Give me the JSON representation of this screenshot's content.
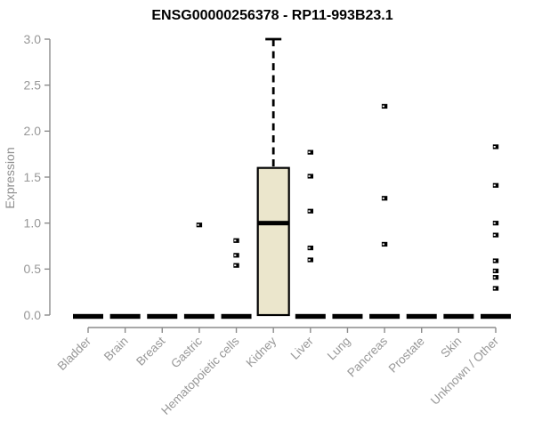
{
  "chart_data": {
    "type": "boxplot",
    "title": "ENSG00000256378 - RP11-993B23.1",
    "xlabel": "",
    "ylabel": "Expression",
    "ylim": [
      0,
      3
    ],
    "yticks": [
      0.0,
      0.5,
      1.0,
      1.5,
      2.0,
      2.5,
      3.0
    ],
    "ytick_labels": [
      "0.0",
      "0.5",
      "1.0",
      "1.5",
      "2.0",
      "2.5",
      "3.0"
    ],
    "grid": false,
    "legend": false,
    "categories": [
      "Bladder",
      "Brain",
      "Breast",
      "Gastric",
      "Hematopoietic cells",
      "Kidney",
      "Liver",
      "Lung",
      "Pancreas",
      "Prostate",
      "Skin",
      "Unknown / Other"
    ],
    "boxes": [
      {
        "category": "Bladder",
        "q1": 0,
        "median": 0,
        "q3": 0,
        "whisker_low": 0,
        "whisker_high": 0,
        "outliers": []
      },
      {
        "category": "Brain",
        "q1": 0,
        "median": 0,
        "q3": 0,
        "whisker_low": 0,
        "whisker_high": 0,
        "outliers": []
      },
      {
        "category": "Breast",
        "q1": 0,
        "median": 0,
        "q3": 0,
        "whisker_low": 0,
        "whisker_high": 0,
        "outliers": []
      },
      {
        "category": "Gastric",
        "q1": 0,
        "median": 0,
        "q3": 0,
        "whisker_low": 0,
        "whisker_high": 0,
        "outliers": [
          0.98
        ]
      },
      {
        "category": "Hematopoietic cells",
        "q1": 0,
        "median": 0,
        "q3": 0,
        "whisker_low": 0,
        "whisker_high": 0,
        "outliers": [
          0.81,
          0.65,
          0.54
        ]
      },
      {
        "category": "Kidney",
        "q1": 0,
        "median": 1.0,
        "q3": 1.6,
        "whisker_low": 0,
        "whisker_high": 3.0,
        "outliers": []
      },
      {
        "category": "Liver",
        "q1": 0,
        "median": 0,
        "q3": 0,
        "whisker_low": 0,
        "whisker_high": 0,
        "outliers": [
          1.77,
          1.51,
          1.13,
          0.73,
          0.6
        ]
      },
      {
        "category": "Lung",
        "q1": 0,
        "median": 0,
        "q3": 0,
        "whisker_low": 0,
        "whisker_high": 0,
        "outliers": []
      },
      {
        "category": "Pancreas",
        "q1": 0,
        "median": 0,
        "q3": 0,
        "whisker_low": 0,
        "whisker_high": 0,
        "outliers": [
          2.27,
          1.27,
          0.77
        ]
      },
      {
        "category": "Prostate",
        "q1": 0,
        "median": 0,
        "q3": 0,
        "whisker_low": 0,
        "whisker_high": 0,
        "outliers": []
      },
      {
        "category": "Skin",
        "q1": 0,
        "median": 0,
        "q3": 0,
        "whisker_low": 0,
        "whisker_high": 0,
        "outliers": []
      },
      {
        "category": "Unknown / Other",
        "q1": 0,
        "median": 0,
        "q3": 0,
        "whisker_low": 0,
        "whisker_high": 0,
        "outliers": [
          1.83,
          1.41,
          1.0,
          0.87,
          0.59,
          0.48,
          0.41,
          0.29
        ]
      }
    ],
    "colors": {
      "box_fill": "#ebe6cc",
      "box_border": "#000000",
      "median": "#000000",
      "whisker": "#000000",
      "outlier": "#000000",
      "outlier_notch": "#ffffff",
      "axis": "#8c8c8c",
      "tick_label": "#979797",
      "axis_title": "#8f8f8f",
      "title": "#000000"
    }
  }
}
